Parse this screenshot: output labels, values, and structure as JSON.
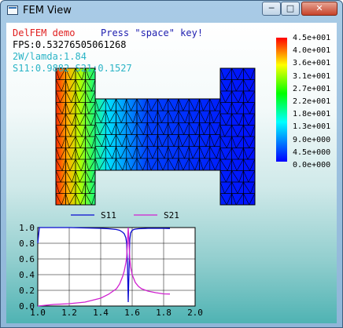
{
  "window": {
    "title": "FEM View",
    "min": "─",
    "max": "□",
    "close": "✕"
  },
  "overlay": {
    "demo_label": "DelFEM demo",
    "hint": "Press \"space\" key!",
    "fps": "FPS:0.53276505061268",
    "ratio": "2W/lamda:1.84",
    "sparams": "S11:0.9882 S21:0.1527"
  },
  "colorbar": {
    "labels": [
      "4.5e+001",
      "4.0e+001",
      "3.6e+001",
      "3.1e+001",
      "2.7e+001",
      "2.2e+001",
      "1.8e+001",
      "1.3e+001",
      "9.0e+000",
      "4.5e+000",
      "0.0e+000"
    ]
  },
  "chart_data": {
    "type": "line",
    "x_ticks": [
      "1.0",
      "1.2",
      "1.4",
      "1.6",
      "1.8",
      "2.0"
    ],
    "y_ticks": [
      "0.0",
      "0.2",
      "0.4",
      "0.6",
      "0.8",
      "1.0"
    ],
    "xlim": [
      1.0,
      2.0
    ],
    "ylim": [
      0.0,
      1.0
    ],
    "grid": true,
    "legend": "top",
    "series": [
      {
        "name": "S11",
        "color": "#0a0ad0",
        "x": [
          1.0,
          1.01,
          1.02,
          1.05,
          1.1,
          1.2,
          1.3,
          1.4,
          1.45,
          1.5,
          1.52,
          1.54,
          1.55,
          1.56,
          1.565,
          1.57,
          1.575,
          1.58,
          1.585,
          1.59,
          1.6,
          1.61,
          1.62,
          1.64,
          1.7,
          1.8,
          1.84
        ],
        "y": [
          0.8,
          1.0,
          1.0,
          1.0,
          1.0,
          1.0,
          0.995,
          0.99,
          0.985,
          0.975,
          0.965,
          0.94,
          0.92,
          0.87,
          0.8,
          0.55,
          0.05,
          0.45,
          0.85,
          0.93,
          0.965,
          0.975,
          0.98,
          0.985,
          0.99,
          0.99,
          0.988
        ]
      },
      {
        "name": "S21",
        "color": "#d020d0",
        "x": [
          1.0,
          1.05,
          1.1,
          1.2,
          1.3,
          1.4,
          1.45,
          1.5,
          1.52,
          1.54,
          1.55,
          1.56,
          1.565,
          1.57,
          1.575,
          1.58,
          1.585,
          1.59,
          1.6,
          1.62,
          1.64,
          1.66,
          1.7,
          1.75,
          1.8,
          1.84
        ],
        "y": [
          0.0,
          0.01,
          0.02,
          0.03,
          0.05,
          0.1,
          0.15,
          0.22,
          0.28,
          0.38,
          0.45,
          0.55,
          0.62,
          0.8,
          1.0,
          0.8,
          0.6,
          0.5,
          0.4,
          0.3,
          0.25,
          0.22,
          0.19,
          0.17,
          0.155,
          0.153
        ]
      }
    ]
  }
}
